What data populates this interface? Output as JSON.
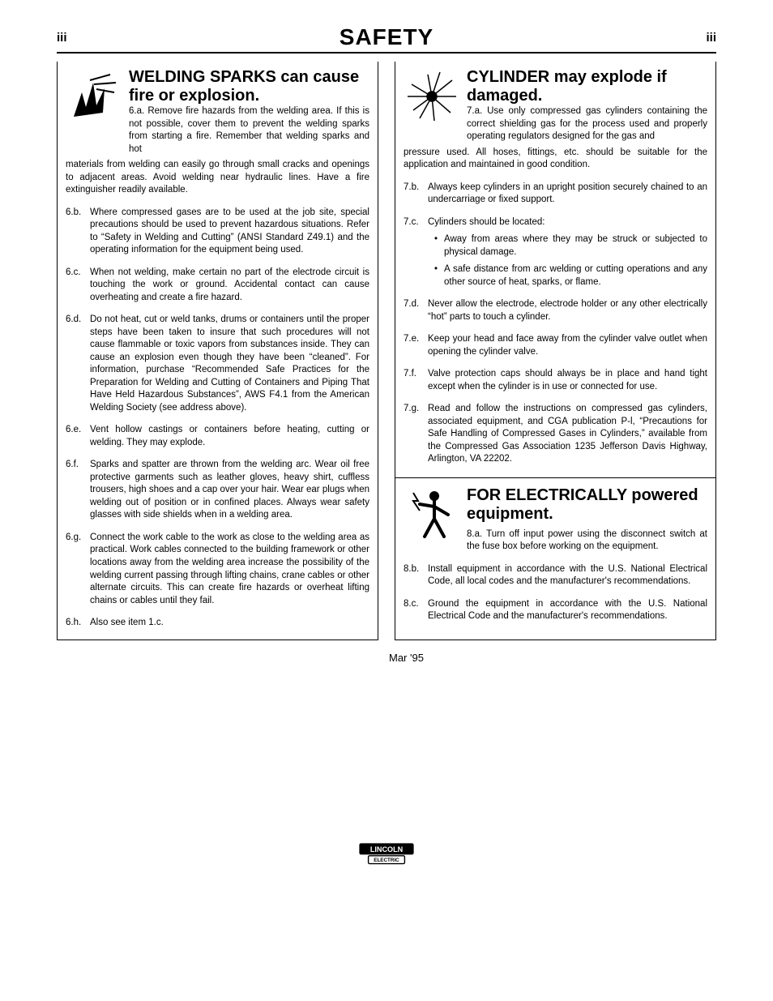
{
  "page": {
    "num": "iii",
    "title": "SAFETY"
  },
  "section6": {
    "title": "WELDING SPARKS can cause fire or explosion.",
    "lead_label": "6.a.",
    "lead": "Remove fire hazards from the welding area. If this is not possible, cover them to prevent the welding sparks from starting a fire. Remember that welding sparks and hot",
    "lead_cont": "materials from welding can easily go through small cracks and openings to adjacent areas. Avoid welding near hydraulic lines. Have a fire extinguisher readily available.",
    "items": [
      {
        "label": "6.b.",
        "text": "Where compressed gases are to be used at the job site, special precautions should be used to prevent hazardous situations. Refer to “Safety in Welding and Cutting” (ANSI Standard Z49.1) and the operating information for the equipment being used."
      },
      {
        "label": "6.c.",
        "text": "When not welding, make certain no part of the electrode circuit is touching the work or ground. Accidental contact can cause overheating and create a fire hazard."
      },
      {
        "label": "6.d.",
        "text": "Do not heat, cut or weld tanks, drums or containers until the proper steps have been taken to insure that such procedures will not cause flammable or toxic vapors from substances inside. They can cause an explosion even though they have been “cleaned”. For information, purchase “Recommended Safe Practices for the Preparation for Welding and Cutting of Containers and Piping That Have Held Hazardous Substances”, AWS F4.1 from the American Welding Society (see address above)."
      },
      {
        "label": "6.e.",
        "text": "Vent hollow castings or containers before heating, cutting or welding. They may explode."
      },
      {
        "label": "6.f.",
        "text": "Sparks and spatter are thrown from the welding arc. Wear oil free protective garments such as leather gloves, heavy shirt, cuffless trousers, high shoes and a cap over your hair. Wear ear plugs when welding out of position or in confined places. Always wear safety glasses with side shields when in a welding area."
      },
      {
        "label": "6.g.",
        "text": "Connect the work cable to the work as close to the welding area as practical. Work cables connected to the building framework or other locations away from the welding area increase the possibility of the welding current passing through lifting chains, crane cables or other alternate circuits. This can create fire hazards or overheat lifting chains or cables until they fail."
      },
      {
        "label": "6.h.",
        "text": "Also see item 1.c."
      }
    ]
  },
  "section7": {
    "title": "CYLINDER may explode if damaged.",
    "lead_label": "7.a.",
    "lead": "Use only compressed gas cylinders containing the correct shielding gas for the process used and properly operating regulators designed for the gas and",
    "lead_cont": "pressure used. All hoses, fittings, etc. should be suitable for the application and maintained in good condition.",
    "items": [
      {
        "label": "7.b.",
        "text": "Always keep cylinders in an upright position securely chained to an undercarriage or fixed support."
      },
      {
        "label": "7.c.",
        "text": "Cylinders should be located:",
        "bullets": [
          "Away from areas where they may be struck or subjected to physical damage.",
          "A safe distance from arc welding or cutting operations and any other source of heat, sparks, or flame."
        ]
      },
      {
        "label": "7.d.",
        "text": "Never allow the electrode, electrode holder or any other electrically “hot” parts to touch a cylinder."
      },
      {
        "label": "7.e.",
        "text": "Keep your head and face away from the cylinder valve outlet when opening the cylinder valve."
      },
      {
        "label": "7.f.",
        "text": "Valve protection caps should always be in place and hand tight except when the cylinder is in use or connected for use."
      },
      {
        "label": "7.g.",
        "text": "Read and follow the instructions on compressed gas cylinders, associated equipment, and CGA publication P-l, “Precautions for Safe Handling of Compressed Gases in Cylinders,” available from the Compressed Gas Association 1235 Jefferson Davis Highway, Arlington, VA 22202."
      }
    ]
  },
  "section8": {
    "title": "FOR ELECTRICALLY powered equipment.",
    "lead_label": "8.a.",
    "lead": "Turn off input power using the disconnect switch at the fuse box before working on the equipment.",
    "items": [
      {
        "label": "8.b.",
        "text": "Install equipment in accordance with the U.S. National Electrical Code, all local codes and the manufacturer's recommendations."
      },
      {
        "label": "8.c.",
        "text": "Ground the equipment in accordance with the U.S. National Electrical Code and the manufacturer's recommendations."
      }
    ]
  },
  "date": "Mar '95",
  "logo": {
    "line1": "LINCOLN",
    "line2": "ELECTRIC"
  }
}
